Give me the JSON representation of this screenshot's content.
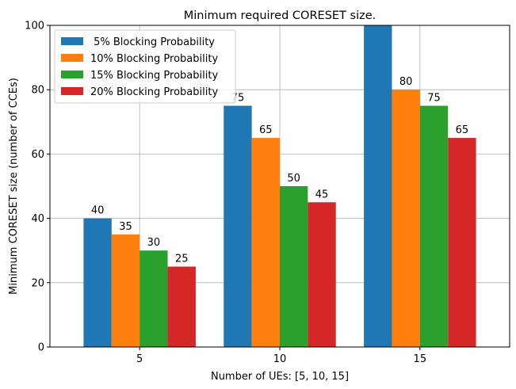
{
  "chart_data": {
    "type": "bar",
    "title": "Minimum required CORESET size.",
    "xlabel": "Number of UEs: [5, 10, 15]",
    "ylabel": "Minimum CORESET size (number of CCEs)",
    "categories": [
      "5",
      "10",
      "15"
    ],
    "ylim": [
      0,
      100
    ],
    "yticks": [
      "0",
      "20",
      "40",
      "60",
      "80",
      "100"
    ],
    "grid": true,
    "legend_position": "top-left",
    "series": [
      {
        "name": " 5% Blocking Probability",
        "values": [
          40,
          75,
          100
        ],
        "labels": [
          "40",
          "75",
          ""
        ],
        "color": "#1f77b4"
      },
      {
        "name": "10% Blocking Probability",
        "values": [
          35,
          65,
          80
        ],
        "labels": [
          "35",
          "65",
          "80"
        ],
        "color": "#ff7f0e"
      },
      {
        "name": "15% Blocking Probability",
        "values": [
          30,
          50,
          75
        ],
        "labels": [
          "30",
          "50",
          "75"
        ],
        "color": "#2ca02c"
      },
      {
        "name": "20% Blocking Probability",
        "values": [
          25,
          45,
          65
        ],
        "labels": [
          "25",
          "45",
          "65"
        ],
        "color": "#d62728"
      }
    ]
  }
}
